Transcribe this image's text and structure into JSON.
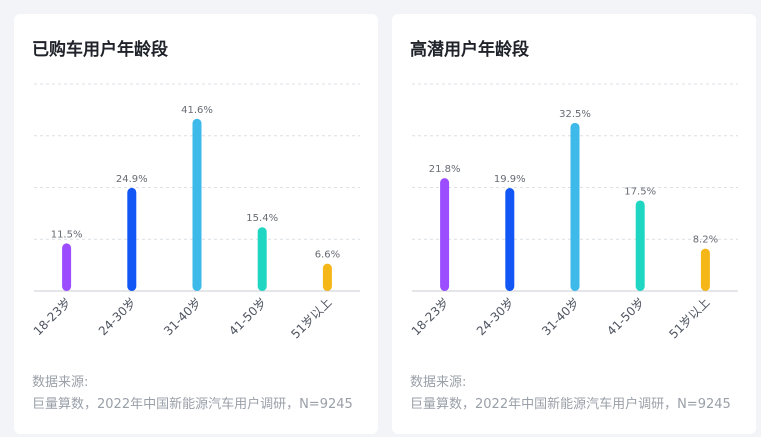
{
  "chart_data": [
    {
      "type": "bar",
      "title": "已购车用户年龄段",
      "categories": [
        "18-23岁",
        "24-30岁",
        "31-40岁",
        "41-50岁",
        "51岁以上"
      ],
      "values": [
        11.5,
        24.9,
        41.6,
        15.4,
        6.6
      ],
      "value_labels": [
        "11.5%",
        "24.9%",
        "41.6%",
        "15.4%",
        "6.6%"
      ],
      "colors": [
        "#9b4dff",
        "#1256f5",
        "#3db9ea",
        "#1fd6c2",
        "#f5b617"
      ],
      "ylim": [
        0,
        50
      ],
      "grid": true,
      "source_label": "数据来源:",
      "source_text": "巨量算数，2022年中国新能源汽车用户调研，N=9245"
    },
    {
      "type": "bar",
      "title": "高潜用户年龄段",
      "categories": [
        "18-23岁",
        "24-30岁",
        "31-40岁",
        "41-50岁",
        "51岁以上"
      ],
      "values": [
        21.8,
        19.9,
        32.5,
        17.5,
        8.2
      ],
      "value_labels": [
        "21.8%",
        "19.9%",
        "32.5%",
        "17.5%",
        "8.2%"
      ],
      "colors": [
        "#9b4dff",
        "#1256f5",
        "#3db9ea",
        "#1fd6c2",
        "#f5b617"
      ],
      "ylim": [
        0,
        40
      ],
      "grid": true,
      "source_label": "数据来源:",
      "source_text": "巨量算数，2022年中国新能源汽车用户调研，N=9245"
    }
  ]
}
